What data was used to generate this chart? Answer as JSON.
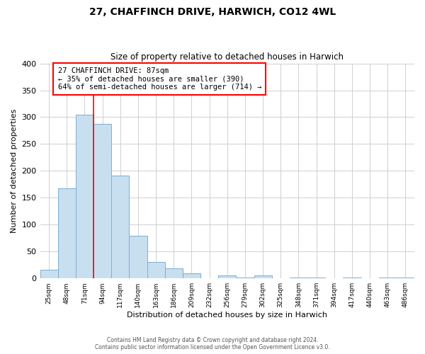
{
  "title1": "27, CHAFFINCH DRIVE, HARWICH, CO12 4WL",
  "title2": "Size of property relative to detached houses in Harwich",
  "xlabel": "Distribution of detached houses by size in Harwich",
  "ylabel": "Number of detached properties",
  "bin_labels": [
    "25sqm",
    "48sqm",
    "71sqm",
    "94sqm",
    "117sqm",
    "140sqm",
    "163sqm",
    "186sqm",
    "209sqm",
    "232sqm",
    "256sqm",
    "279sqm",
    "302sqm",
    "325sqm",
    "348sqm",
    "371sqm",
    "394sqm",
    "417sqm",
    "440sqm",
    "463sqm",
    "486sqm"
  ],
  "bar_heights": [
    16,
    168,
    305,
    288,
    191,
    79,
    31,
    19,
    10,
    0,
    5,
    2,
    5,
    0,
    2,
    1,
    0,
    1,
    0,
    1,
    1
  ],
  "bar_color": "#c8dff0",
  "bar_edge_color": "#7bafd4",
  "vline_x": 2.5,
  "annotation_title": "27 CHAFFINCH DRIVE: 87sqm",
  "annotation_line1": "← 35% of detached houses are smaller (390)",
  "annotation_line2": "64% of semi-detached houses are larger (714) →",
  "footnote1": "Contains HM Land Registry data © Crown copyright and database right 2024.",
  "footnote2": "Contains public sector information licensed under the Open Government Licence v3.0.",
  "ylim": [
    0,
    400
  ],
  "yticks": [
    0,
    50,
    100,
    150,
    200,
    250,
    300,
    350,
    400
  ],
  "background_color": "#ffffff",
  "grid_color": "#d0d0d0"
}
